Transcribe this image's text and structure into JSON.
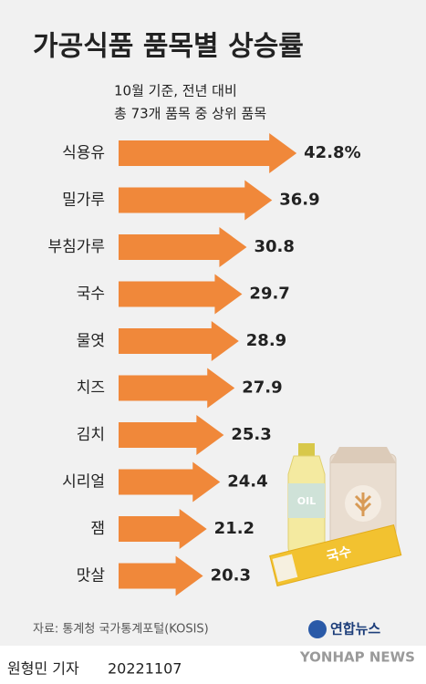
{
  "chart_data": {
    "type": "arrow-bar",
    "title": "가공식품 품목별 상승률",
    "subtitle": [
      "10월 기준, 전년 대비",
      "총 73개 품목 중 상위 품목"
    ],
    "categories": [
      "식용유",
      "밀가루",
      "부침가루",
      "국수",
      "물엿",
      "치즈",
      "김치",
      "시리얼",
      "잼",
      "맛살"
    ],
    "values": [
      42.8,
      36.9,
      30.8,
      29.7,
      28.9,
      27.9,
      25.3,
      24.4,
      21.2,
      20.3
    ],
    "value_labels": [
      "42.8%",
      "36.9",
      "30.8",
      "29.7",
      "28.9",
      "27.9",
      "25.3",
      "24.4",
      "21.2",
      "20.3"
    ],
    "color": "#f0883a",
    "source": "자료: 통계청 국가통계포털(KOSIS)"
  },
  "illustration": {
    "bottle_label": "OIL",
    "package_label": "국수"
  },
  "footer": {
    "logo": "연합뉴스",
    "logo_en": "YONHAP NEWS",
    "byline": "원형민 기자",
    "date": "20221107"
  }
}
